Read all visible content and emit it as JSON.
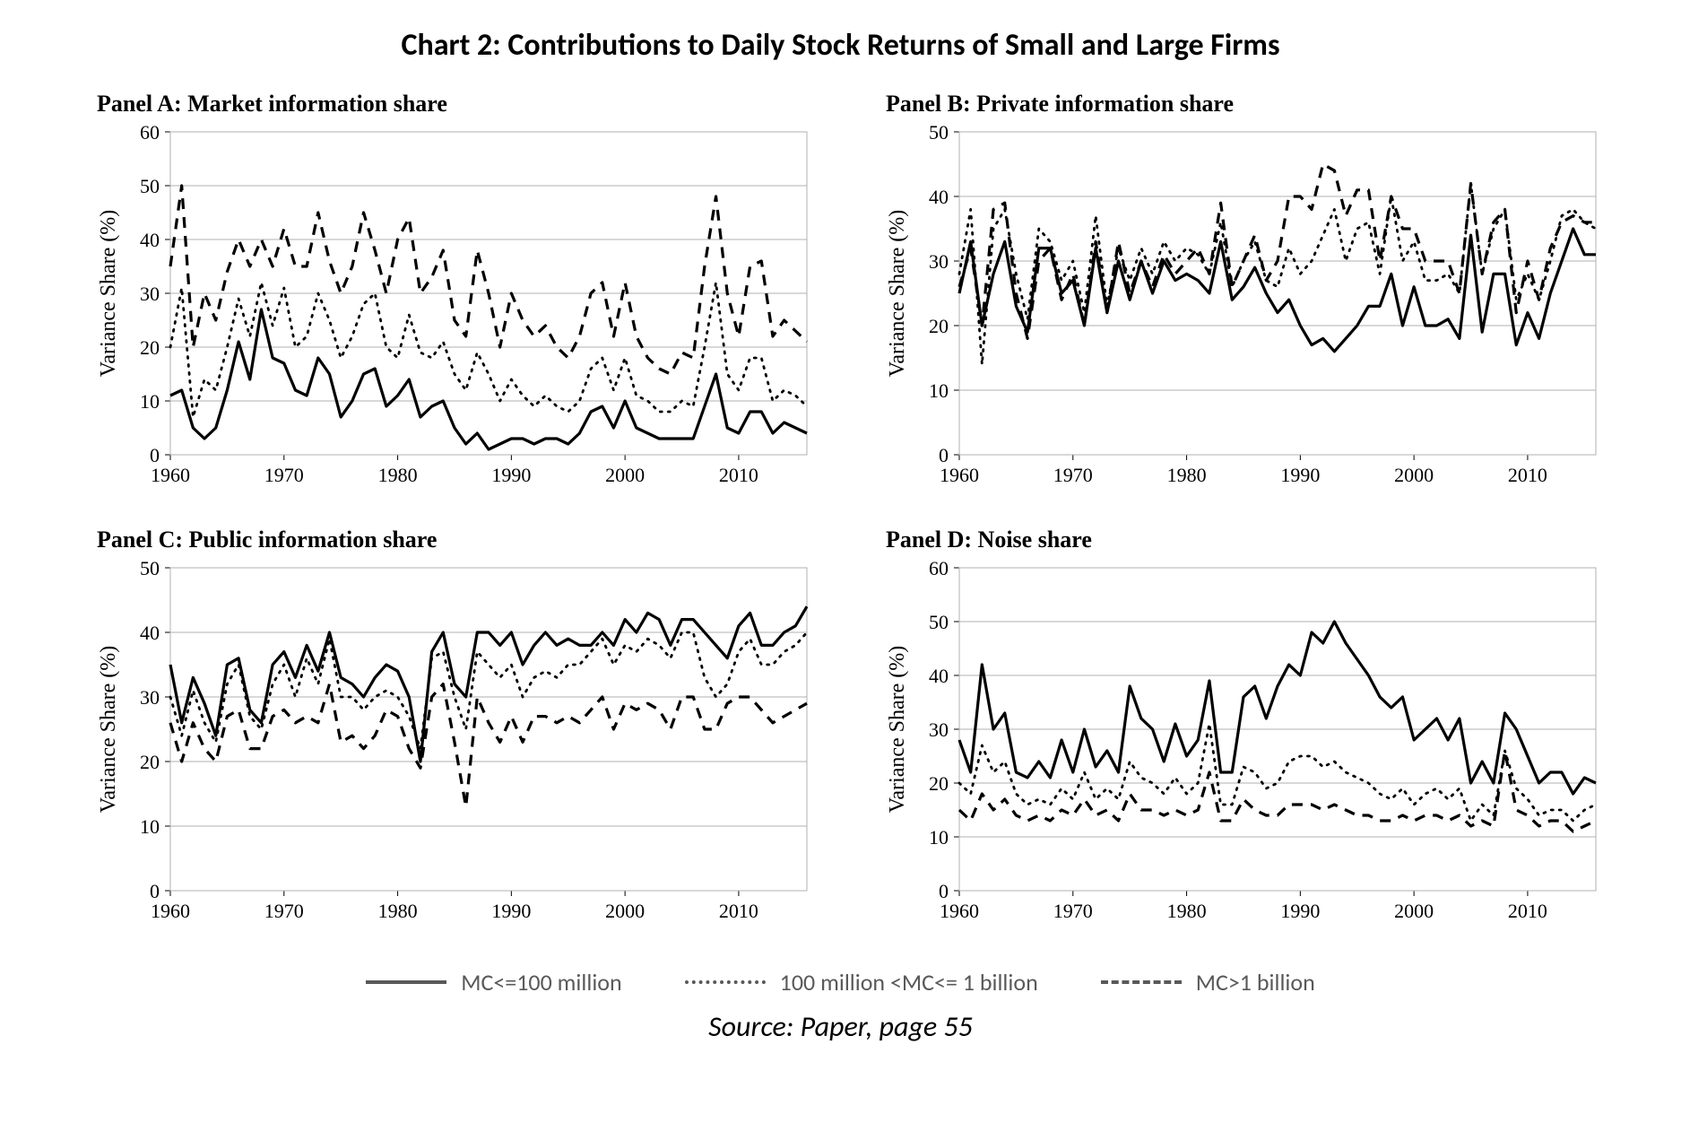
{
  "main_title": "Chart 2: Contributions to Daily Stock Returns of Small and Large Firms",
  "source": "Source: Paper, page 55",
  "legend": {
    "items": [
      {
        "label": "MC<=100 million",
        "dash": "solid"
      },
      {
        "label": "100 million <MC<= 1 billion",
        "dash": "dotted"
      },
      {
        "label": "MC>1 billion",
        "dash": "dashed"
      }
    ],
    "color": "#595959",
    "font_size": 26
  },
  "style": {
    "line_color": "#000000",
    "line_width_solid": 3.2,
    "line_width_dotted": 2.8,
    "line_width_dashed": 3.2,
    "dash_pattern_dotted": "2 7",
    "dash_pattern_dashed": "12 9",
    "grid_color": "#b0b0b0",
    "background_color": "#ffffff",
    "axis_font_size": 22,
    "ylabel_font_size": 24,
    "title_font_size": 34,
    "panel_title_font_size": 26,
    "font_family_title": "Calibri, Arial, sans-serif",
    "font_family_axis": "'Times New Roman', Georgia, serif"
  },
  "shared_x": {
    "min": 1960,
    "max": 2016,
    "ticks": [
      1960,
      1970,
      1980,
      1990,
      2000,
      2010
    ],
    "label": ""
  },
  "ylabel": "Variance Share (%)",
  "panels": {
    "A": {
      "title": "Panel A: Market information share",
      "ylim": [
        0,
        60
      ],
      "ytick_step": 10,
      "series": {
        "solid": [
          11,
          12,
          5,
          3,
          5,
          12,
          21,
          14,
          27,
          18,
          17,
          12,
          11,
          18,
          15,
          7,
          10,
          15,
          16,
          9,
          11,
          14,
          7,
          9,
          10,
          5,
          2,
          4,
          1,
          2,
          3,
          3,
          2,
          3,
          3,
          2,
          4,
          8,
          9,
          5,
          10,
          5,
          4,
          3,
          3,
          3,
          3,
          9,
          15,
          5,
          4,
          8,
          8,
          4,
          6,
          5,
          4
        ],
        "dotted": [
          20,
          31,
          7,
          14,
          12,
          20,
          29,
          22,
          32,
          24,
          31,
          20,
          22,
          30,
          25,
          18,
          22,
          28,
          30,
          20,
          18,
          26,
          19,
          18,
          21,
          15,
          12,
          19,
          15,
          10,
          14,
          11,
          9,
          11,
          9,
          8,
          10,
          16,
          18,
          12,
          18,
          11,
          10,
          8,
          8,
          10,
          9,
          20,
          32,
          15,
          12,
          18,
          18,
          10,
          12,
          11,
          9
        ],
        "dashed": [
          35,
          50,
          20,
          30,
          25,
          34,
          40,
          35,
          40,
          35,
          42,
          35,
          35,
          45,
          36,
          30,
          35,
          45,
          38,
          30,
          40,
          44,
          30,
          33,
          38,
          25,
          22,
          38,
          30,
          20,
          30,
          25,
          22,
          24,
          20,
          18,
          22,
          30,
          32,
          22,
          32,
          22,
          18,
          16,
          15,
          19,
          18,
          35,
          48,
          30,
          22,
          35,
          36,
          22,
          25,
          23,
          21
        ]
      }
    },
    "B": {
      "title": "Panel B: Private information share",
      "ylim": [
        0,
        50
      ],
      "ytick_step": 10,
      "series": {
        "solid": [
          25,
          33,
          20,
          28,
          33,
          23,
          19,
          32,
          32,
          25,
          27,
          20,
          32,
          22,
          30,
          24,
          30,
          25,
          30,
          27,
          28,
          27,
          25,
          33,
          24,
          26,
          29,
          25,
          22,
          24,
          20,
          17,
          18,
          16,
          18,
          20,
          23,
          23,
          28,
          20,
          26,
          20,
          20,
          21,
          18,
          34,
          19,
          28,
          28,
          17,
          22,
          18,
          25,
          30,
          35,
          31,
          31
        ],
        "dotted": [
          28,
          38,
          14,
          35,
          38,
          28,
          21,
          35,
          33,
          27,
          30,
          22,
          37,
          23,
          32,
          27,
          32,
          28,
          33,
          30,
          32,
          31,
          28,
          36,
          26,
          30,
          33,
          27,
          26,
          32,
          28,
          30,
          34,
          38,
          30,
          35,
          36,
          28,
          40,
          30,
          33,
          27,
          27,
          28,
          25,
          42,
          28,
          35,
          38,
          24,
          28,
          24,
          30,
          37,
          38,
          36,
          35
        ],
        "dashed": [
          26,
          32,
          20,
          38,
          39,
          25,
          18,
          30,
          32,
          24,
          28,
          20,
          33,
          22,
          33,
          25,
          30,
          26,
          31,
          28,
          30,
          32,
          28,
          39,
          26,
          30,
          34,
          27,
          30,
          40,
          40,
          38,
          45,
          44,
          37,
          41,
          41,
          30,
          40,
          35,
          35,
          30,
          30,
          30,
          25,
          42,
          28,
          36,
          38,
          22,
          30,
          24,
          32,
          36,
          37,
          36,
          36
        ]
      }
    },
    "C": {
      "title": "Panel C: Public information share",
      "ylim": [
        0,
        50
      ],
      "ytick_step": 10,
      "series": {
        "solid": [
          35,
          26,
          33,
          29,
          24,
          35,
          36,
          28,
          26,
          35,
          37,
          33,
          38,
          34,
          40,
          33,
          32,
          30,
          33,
          35,
          34,
          30,
          20,
          37,
          40,
          32,
          30,
          40,
          40,
          38,
          40,
          35,
          38,
          40,
          38,
          39,
          38,
          38,
          40,
          38,
          42,
          40,
          43,
          42,
          38,
          42,
          42,
          40,
          38,
          36,
          41,
          43,
          38,
          38,
          40,
          41,
          44
        ],
        "dotted": [
          30,
          24,
          31,
          26,
          23,
          32,
          35,
          27,
          25,
          32,
          35,
          30,
          36,
          32,
          39,
          30,
          30,
          28,
          30,
          31,
          30,
          27,
          22,
          36,
          37,
          30,
          25,
          37,
          35,
          33,
          35,
          30,
          33,
          34,
          33,
          35,
          35,
          37,
          39,
          35,
          38,
          37,
          39,
          38,
          36,
          40,
          40,
          33,
          30,
          32,
          37,
          39,
          35,
          35,
          37,
          38,
          40
        ],
        "dashed": [
          26,
          20,
          26,
          22,
          20,
          27,
          28,
          22,
          22,
          27,
          28,
          26,
          27,
          26,
          32,
          23,
          24,
          22,
          24,
          28,
          27,
          22,
          19,
          30,
          32,
          23,
          13,
          30,
          26,
          23,
          27,
          23,
          27,
          27,
          26,
          27,
          26,
          28,
          30,
          25,
          29,
          28,
          29,
          28,
          25,
          30,
          30,
          25,
          25,
          29,
          30,
          30,
          28,
          26,
          27,
          28,
          29
        ]
      }
    },
    "D": {
      "title": "Panel D: Noise share",
      "ylim": [
        0,
        60
      ],
      "ytick_step": 10,
      "series": {
        "solid": [
          28,
          22,
          42,
          30,
          33,
          22,
          21,
          24,
          21,
          28,
          22,
          30,
          23,
          26,
          22,
          38,
          32,
          30,
          24,
          31,
          25,
          28,
          39,
          22,
          22,
          36,
          38,
          32,
          38,
          42,
          40,
          48,
          46,
          50,
          46,
          43,
          40,
          36,
          34,
          36,
          28,
          30,
          32,
          28,
          32,
          20,
          24,
          20,
          33,
          30,
          25,
          20,
          22,
          22,
          18,
          21,
          20
        ],
        "dotted": [
          20,
          18,
          27,
          22,
          24,
          18,
          16,
          17,
          16,
          19,
          17,
          22,
          17,
          19,
          17,
          24,
          21,
          20,
          18,
          21,
          18,
          20,
          31,
          16,
          16,
          23,
          22,
          19,
          20,
          24,
          25,
          25,
          23,
          24,
          22,
          21,
          20,
          18,
          17,
          19,
          16,
          18,
          19,
          17,
          19,
          13,
          16,
          14,
          26,
          19,
          17,
          14,
          15,
          15,
          13,
          15,
          16
        ],
        "dashed": [
          15,
          13,
          18,
          15,
          17,
          14,
          13,
          14,
          13,
          15,
          14,
          17,
          14,
          15,
          13,
          18,
          15,
          15,
          14,
          15,
          14,
          15,
          22,
          13,
          13,
          17,
          15,
          14,
          14,
          16,
          16,
          16,
          15,
          16,
          15,
          14,
          14,
          13,
          13,
          14,
          13,
          14,
          14,
          13,
          14,
          12,
          13,
          12,
          26,
          15,
          14,
          12,
          13,
          13,
          11,
          12,
          13
        ]
      }
    }
  }
}
